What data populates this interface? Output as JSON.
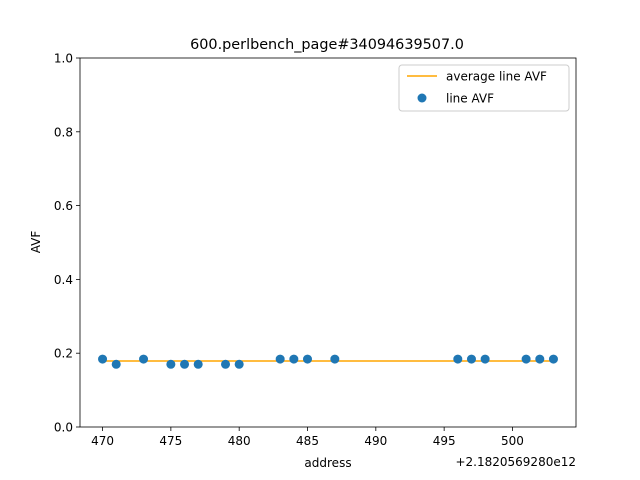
{
  "chart_data": {
    "type": "scatter",
    "title": "600.perlbench_page#34094639507.0",
    "xlabel": "address",
    "ylabel": "AVF",
    "x_offset_label": "+2.1820569280e12",
    "xlim": [
      468.35,
      504.65
    ],
    "ylim": [
      0,
      1
    ],
    "x_ticks": [
      470,
      475,
      480,
      485,
      490,
      495,
      500
    ],
    "x_tick_labels": [
      "470",
      "475",
      "480",
      "485",
      "490",
      "495",
      "500"
    ],
    "y_ticks": [
      0,
      0.2,
      0.4,
      0.6,
      0.8,
      1.0
    ],
    "y_tick_labels": [
      "0.0",
      "0.2",
      "0.4",
      "0.6",
      "0.8",
      "1.0"
    ],
    "legend_position": "top-right",
    "colors": {
      "average": "#ffa500",
      "points": "#1f77b4"
    },
    "series": [
      {
        "name": "average line AVF",
        "kind": "line",
        "x": [
          470,
          503
        ],
        "y": [
          0.179,
          0.179
        ]
      },
      {
        "name": "line AVF",
        "kind": "scatter",
        "x": [
          470,
          471,
          473,
          475,
          476,
          477,
          479,
          480,
          483,
          484,
          485,
          487,
          496,
          497,
          498,
          501,
          502,
          503
        ],
        "y": [
          0.184,
          0.17,
          0.184,
          0.17,
          0.17,
          0.17,
          0.17,
          0.17,
          0.184,
          0.184,
          0.184,
          0.184,
          0.184,
          0.184,
          0.184,
          0.184,
          0.184,
          0.184
        ]
      }
    ]
  }
}
